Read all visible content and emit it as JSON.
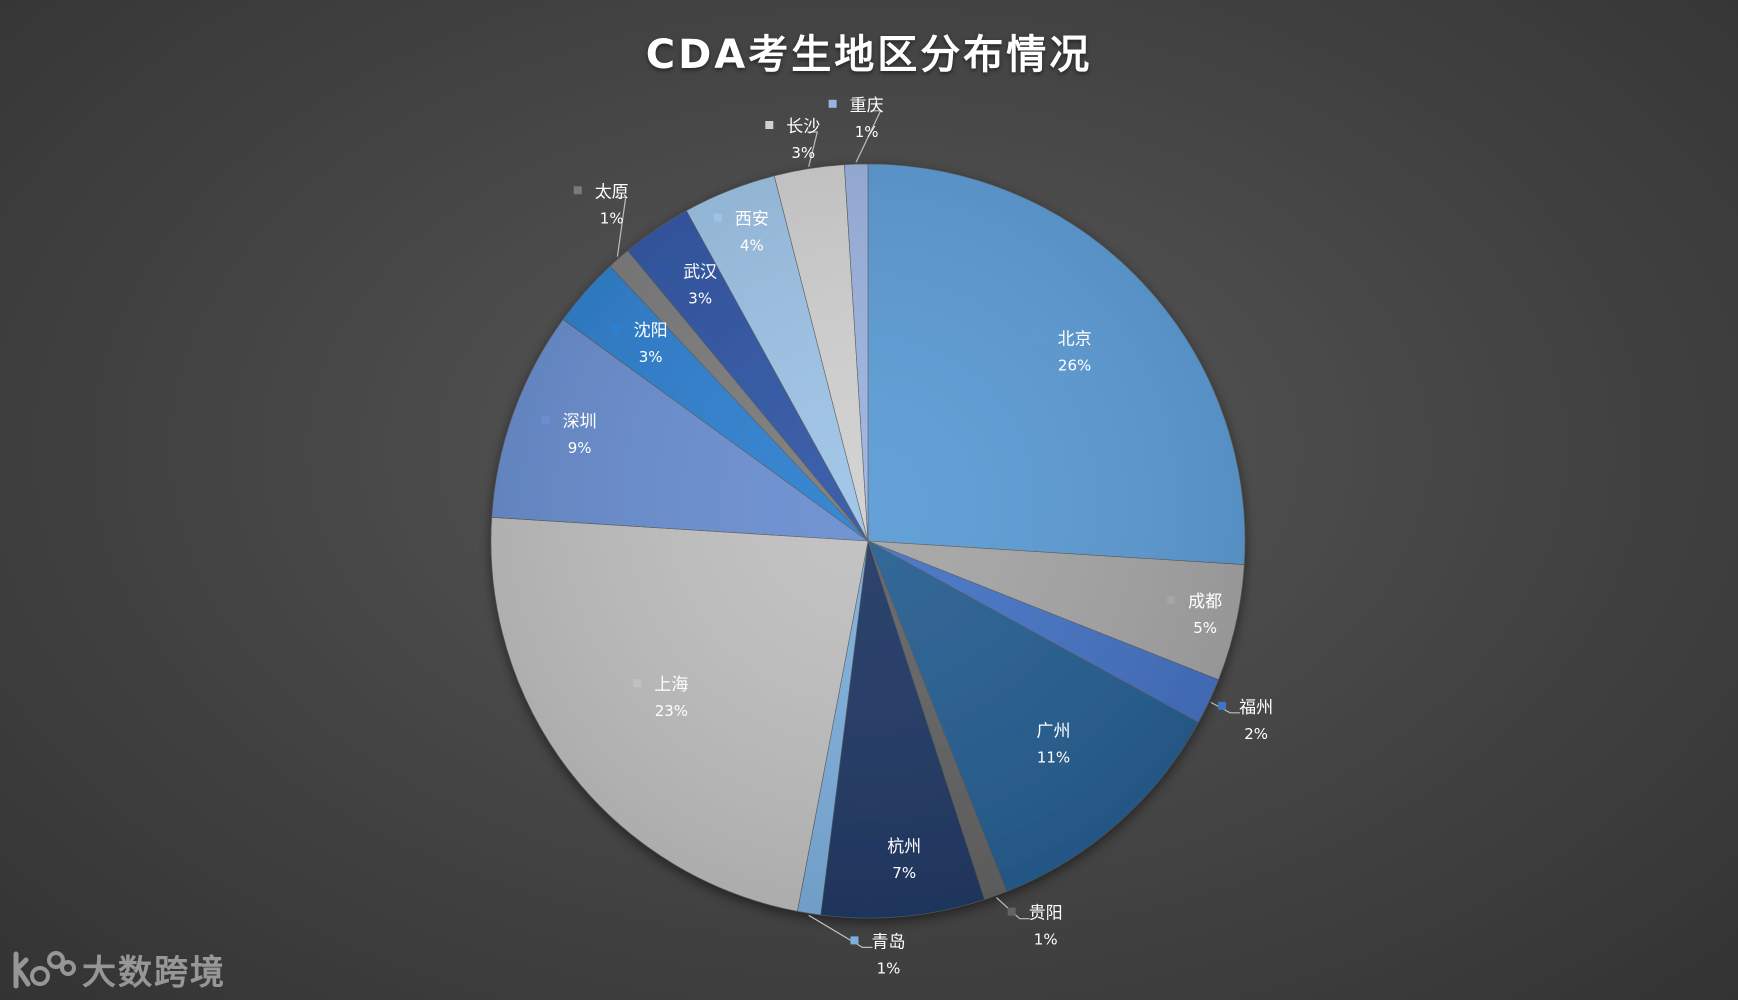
{
  "chart_data": {
    "type": "pie",
    "title": "CDA考生地区分布情况",
    "start_angle_deg": 0,
    "direction": "clockwise",
    "slices": [
      {
        "label": "北京",
        "value": 26,
        "pct_label": "26%",
        "color": "#5b9bd5"
      },
      {
        "label": "成都",
        "value": 5,
        "pct_label": "5%",
        "color": "#a5a5a5"
      },
      {
        "label": "福州",
        "value": 2,
        "pct_label": "2%",
        "color": "#4472c4"
      },
      {
        "label": "广州",
        "value": 11,
        "pct_label": "11%",
        "color": "#255e91"
      },
      {
        "label": "贵阳",
        "value": 1,
        "pct_label": "1%",
        "color": "#636363"
      },
      {
        "label": "杭州",
        "value": 7,
        "pct_label": "7%",
        "color": "#203864"
      },
      {
        "label": "青岛",
        "value": 1,
        "pct_label": "1%",
        "color": "#7cafdd"
      },
      {
        "label": "上海",
        "value": 23,
        "pct_label": "23%",
        "color": "#c0c0c0"
      },
      {
        "label": "深圳",
        "value": 9,
        "pct_label": "9%",
        "color": "#698ed0"
      },
      {
        "label": "沈阳",
        "value": 3,
        "pct_label": "3%",
        "color": "#2d7fcf"
      },
      {
        "label": "太原",
        "value": 1,
        "pct_label": "1%",
        "color": "#7b7b7b"
      },
      {
        "label": "武汉",
        "value": 3,
        "pct_label": "3%",
        "color": "#2f55a4"
      },
      {
        "label": "西安",
        "value": 4,
        "pct_label": "4%",
        "color": "#9dc3e6"
      },
      {
        "label": "长沙",
        "value": 3,
        "pct_label": "3%",
        "color": "#d0d0d0"
      },
      {
        "label": "重庆",
        "value": 1,
        "pct_label": "1%",
        "color": "#9bb3e0"
      }
    ]
  },
  "watermark": {
    "text": "大数跨境"
  }
}
